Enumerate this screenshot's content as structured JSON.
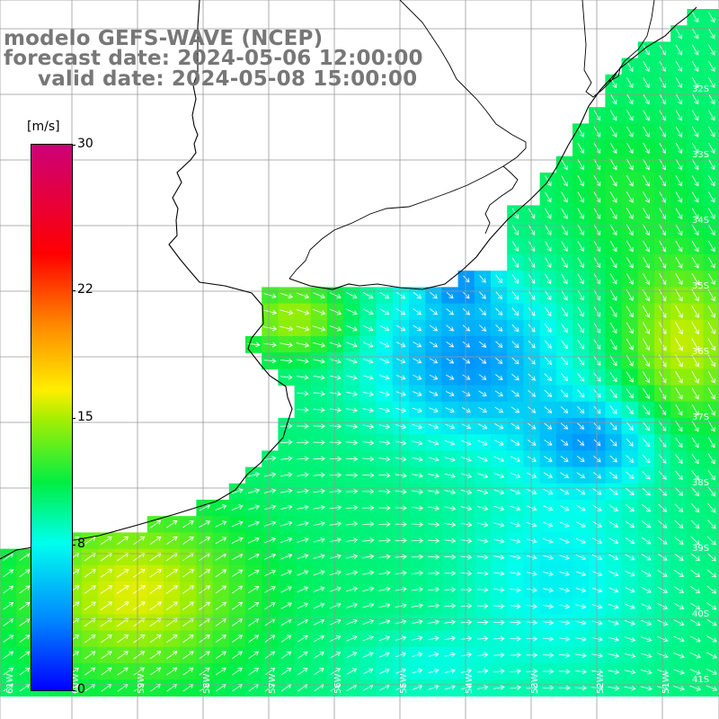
{
  "title": {
    "line1": "modelo GEFS-WAVE (NCEP)",
    "line2": "forecast date: 2024-05-06 12:00:00",
    "line3": "valid date: 2024-05-08 15:00:00"
  },
  "colorbar": {
    "unit": "[m/s]",
    "ticks": [
      "30",
      "22",
      "15",
      "8",
      "0"
    ],
    "tick_values": [
      30,
      22,
      15,
      8,
      0
    ],
    "min": 0,
    "max": 30
  },
  "map": {
    "lat_labels": [
      "32S",
      "33S",
      "34S",
      "35S",
      "36S",
      "37S",
      "38S",
      "39S",
      "40S",
      "41S"
    ],
    "lon_labels": [
      "61W",
      "60W",
      "59W",
      "58W",
      "57W",
      "56W",
      "55W",
      "54W",
      "53W",
      "52W",
      "51W"
    ],
    "lon_range": [
      -61.0,
      -50.5
    ],
    "lat_range": [
      -41.3,
      -30.6
    ],
    "grid": true,
    "variable": "wind speed",
    "colors": {
      "land": "#ffffff",
      "coast": "#000000",
      "grid": "#999999",
      "arrow": "#ffffff"
    }
  }
}
